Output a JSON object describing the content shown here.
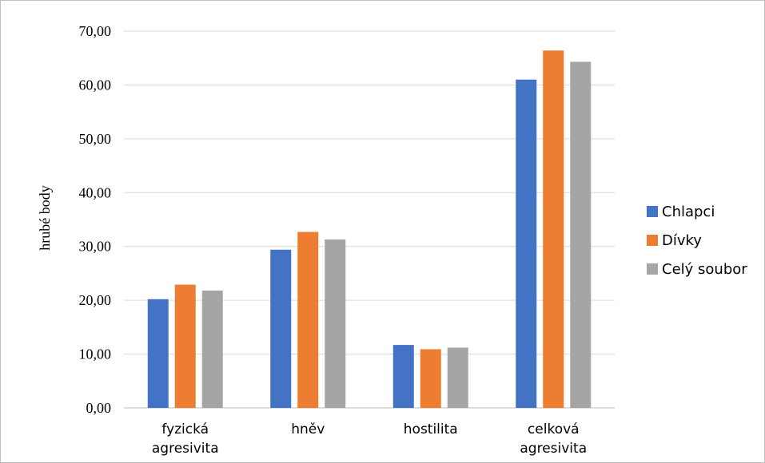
{
  "chart_data": {
    "type": "bar",
    "ylabel": "hrubé body",
    "ylim": [
      0,
      70
    ],
    "yticks": [
      "0,00",
      "10,00",
      "20,00",
      "30,00",
      "40,00",
      "50,00",
      "60,00",
      "70,00"
    ],
    "grid": true,
    "legend_position": "right",
    "categories": [
      [
        "fyzická",
        "agresivita"
      ],
      [
        "hněv"
      ],
      [
        "hostilita"
      ],
      [
        "celková",
        "agresivita"
      ]
    ],
    "series": [
      {
        "name": "Chlapci",
        "color": "#4472c4",
        "values": [
          20.2,
          29.4,
          11.7,
          61.0
        ]
      },
      {
        "name": "Dívky",
        "color": "#ed7d31",
        "values": [
          22.9,
          32.7,
          10.9,
          66.4
        ]
      },
      {
        "name": "Celý soubor",
        "color": "#a5a5a5",
        "values": [
          21.8,
          31.3,
          11.2,
          64.3
        ]
      }
    ]
  }
}
